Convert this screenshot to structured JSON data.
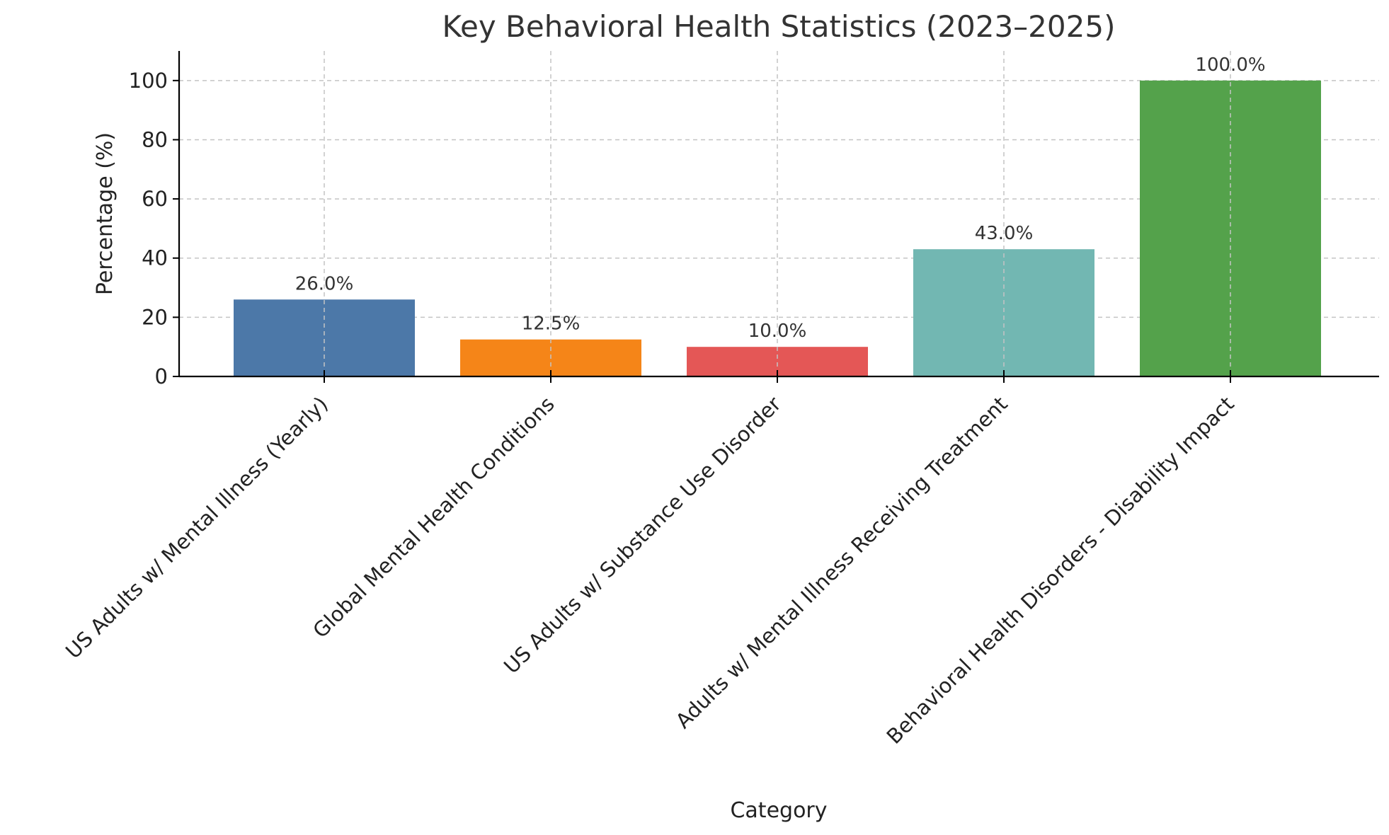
{
  "chart_data": {
    "type": "bar",
    "title": "Key Behavioral Health Statistics (2023–2025)",
    "xlabel": "Category",
    "ylabel": "Percentage (%)",
    "categories": [
      "US Adults w/ Mental Illness (Yearly)",
      "Global Mental Health Conditions",
      "US Adults w/ Substance Use Disorder",
      "Adults w/ Mental Illness Receiving Treatment",
      "Behavioral Health Disorders - Disability Impact"
    ],
    "values": [
      26.0,
      12.5,
      10.0,
      43.0,
      100.0
    ],
    "data_labels": [
      "26.0%",
      "12.5%",
      "10.0%",
      "43.0%",
      "100.0%"
    ],
    "colors": [
      "#4c78a8",
      "#f58518",
      "#e45756",
      "#72b7b2",
      "#54a24b"
    ],
    "ylim": [
      0,
      110
    ],
    "yticks": [
      0,
      20,
      40,
      60,
      80,
      100
    ],
    "grid": true,
    "legend": "none"
  }
}
